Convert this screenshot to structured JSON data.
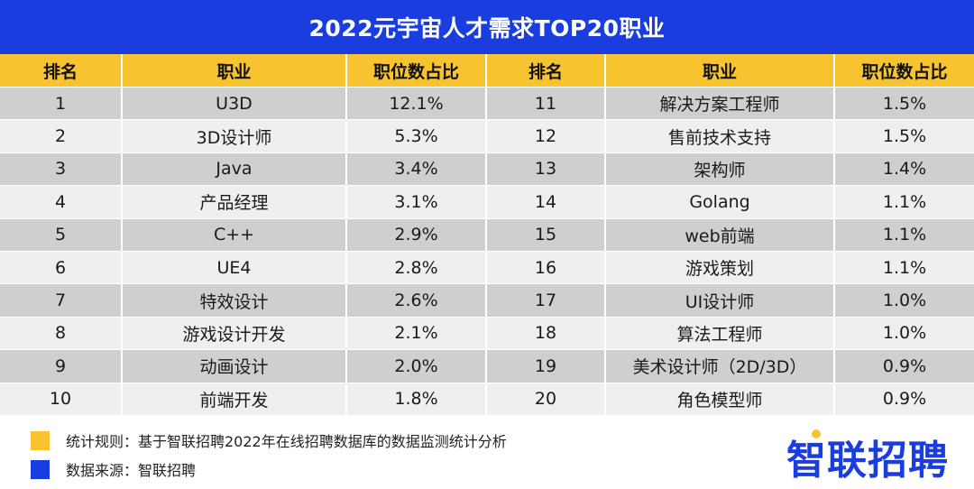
{
  "title": "2022元宇宙人才需求TOP20职业",
  "headers": [
    "排名",
    "职业",
    "职位数占比",
    "排名",
    "职业",
    "职位数占比"
  ],
  "rows": [
    {
      "rank_left": "1",
      "job_left": "U3D",
      "pct_left": "12.1%",
      "rank_right": "11",
      "job_right": "解决方案工程师",
      "pct_right": "1.5%"
    },
    {
      "rank_left": "2",
      "job_left": "3D设计师",
      "pct_left": "5.3%",
      "rank_right": "12",
      "job_right": "售前技术支持",
      "pct_right": "1.5%"
    },
    {
      "rank_left": "3",
      "job_left": "Java",
      "pct_left": "3.4%",
      "rank_right": "13",
      "job_right": "架构师",
      "pct_right": "1.4%"
    },
    {
      "rank_left": "4",
      "job_left": "产品经理",
      "pct_left": "3.1%",
      "rank_right": "14",
      "job_right": "Golang",
      "pct_right": "1.1%"
    },
    {
      "rank_left": "5",
      "job_left": "C++",
      "pct_left": "2.9%",
      "rank_right": "15",
      "job_right": "web前端",
      "pct_right": "1.1%"
    },
    {
      "rank_left": "6",
      "job_left": "UE4",
      "pct_left": "2.8%",
      "rank_right": "16",
      "job_right": "游戏策划",
      "pct_right": "1.1%"
    },
    {
      "rank_left": "7",
      "job_left": "特效设计",
      "pct_left": "2.6%",
      "rank_right": "17",
      "job_right": "UI设计师",
      "pct_right": "1.0%"
    },
    {
      "rank_left": "8",
      "job_left": "游戏设计开发",
      "pct_left": "2.1%",
      "rank_right": "18",
      "job_right": "算法工程师",
      "pct_right": "1.0%"
    },
    {
      "rank_left": "9",
      "job_left": "动画设计",
      "pct_left": "2.0%",
      "rank_right": "19",
      "job_right": "美术设计师（2D/3D）",
      "pct_right": "0.9%"
    },
    {
      "rank_left": "10",
      "job_left": "前端开发",
      "pct_left": "1.8%",
      "rank_right": "20",
      "job_right": "角色模型师",
      "pct_right": "0.9%"
    }
  ],
  "legend": [
    {
      "color": "#f7c32e",
      "text": "统计规则：基于智联招聘2022年在线招聘数据库的数据监测统计分析"
    },
    {
      "color": "#1a3de0",
      "text": "数据来源：智联招聘"
    }
  ],
  "logo_text": "智联招聘",
  "colors": {
    "title_bg": "#1a3de0",
    "header_bg": "#f7c32e",
    "row_dark": "#cfcfcf",
    "row_light": "#efefef"
  }
}
